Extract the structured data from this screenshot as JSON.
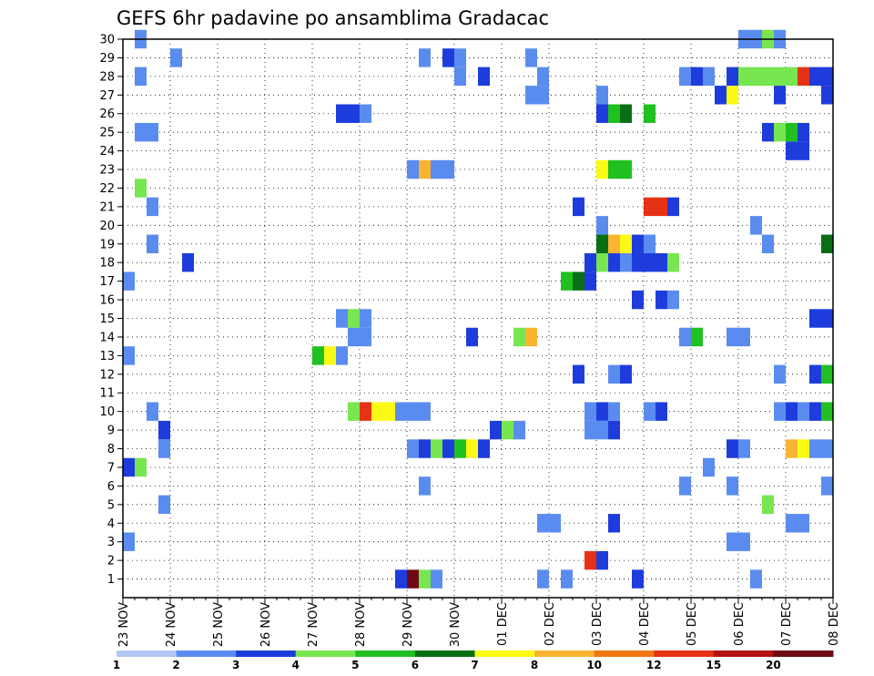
{
  "chart_data": {
    "type": "heatmap",
    "title": "GEFS 6hr padavine po ansamblima Gradacac",
    "xlabel": "",
    "ylabel": "",
    "x_ticks": [
      "23 NOV",
      "24 NOV",
      "25 NOV",
      "26 NOV",
      "27 NOV",
      "28 NOV",
      "29 NOV",
      "30 NOV",
      "01 DEC",
      "02 DEC",
      "03 DEC",
      "04 DEC",
      "05 DEC",
      "06 DEC",
      "07 DEC",
      "08 DEC"
    ],
    "y_ticks": [
      "1",
      "2",
      "3",
      "4",
      "5",
      "6",
      "7",
      "8",
      "9",
      "10",
      "11",
      "12",
      "13",
      "14",
      "15",
      "16",
      "17",
      "18",
      "19",
      "20",
      "21",
      "22",
      "23",
      "24",
      "25",
      "26",
      "27",
      "28",
      "29",
      "30"
    ],
    "xlim": [
      0,
      15
    ],
    "ylim": [
      0,
      30
    ],
    "grid": true,
    "x_unit": "days from 23 NOV (4 steps of 6hr per day)",
    "levels": [
      "1",
      "2",
      "3",
      "4",
      "5",
      "6",
      "7",
      "8",
      "10",
      "12",
      "15",
      "20"
    ],
    "colors": [
      "#b4c8f5",
      "#5a8cf0",
      "#1e3cdc",
      "#78e650",
      "#20c020",
      "#0a6e14",
      "#fafa14",
      "#fab432",
      "#f07814",
      "#e63214",
      "#b41414",
      "#6e0a14"
    ],
    "cells": [
      [
        0.25,
        30,
        1
      ],
      [
        13.0,
        30,
        1
      ],
      [
        13.25,
        30,
        1
      ],
      [
        13.5,
        30,
        3
      ],
      [
        13.75,
        30,
        1
      ],
      [
        1.0,
        29,
        1
      ],
      [
        6.25,
        29,
        1
      ],
      [
        6.75,
        29,
        2
      ],
      [
        7.0,
        29,
        1
      ],
      [
        8.5,
        29,
        1
      ],
      [
        0.25,
        28,
        1
      ],
      [
        7.0,
        28,
        1
      ],
      [
        7.5,
        28,
        2
      ],
      [
        8.75,
        28,
        1
      ],
      [
        11.75,
        28,
        1
      ],
      [
        12.0,
        28,
        2
      ],
      [
        12.25,
        28,
        1
      ],
      [
        12.75,
        28,
        2
      ],
      [
        13.0,
        28,
        3
      ],
      [
        13.25,
        28,
        3
      ],
      [
        13.5,
        28,
        3
      ],
      [
        13.75,
        28,
        3
      ],
      [
        14.0,
        28,
        3
      ],
      [
        14.25,
        28,
        9
      ],
      [
        14.5,
        28,
        2
      ],
      [
        14.75,
        28,
        2
      ],
      [
        15.0,
        28,
        1
      ],
      [
        8.5,
        27,
        1
      ],
      [
        8.75,
        27,
        1
      ],
      [
        10.0,
        27,
        1
      ],
      [
        12.5,
        27,
        2
      ],
      [
        12.75,
        27,
        6
      ],
      [
        13.75,
        27,
        2
      ],
      [
        14.75,
        27,
        2
      ],
      [
        15.0,
        27,
        4
      ],
      [
        4.5,
        26,
        2
      ],
      [
        4.75,
        26,
        2
      ],
      [
        5.0,
        26,
        1
      ],
      [
        10.0,
        26,
        2
      ],
      [
        10.25,
        26,
        4
      ],
      [
        10.5,
        26,
        5
      ],
      [
        11.0,
        26,
        4
      ],
      [
        0.25,
        25,
        1
      ],
      [
        0.5,
        25,
        1
      ],
      [
        13.5,
        25,
        2
      ],
      [
        13.75,
        25,
        3
      ],
      [
        14.0,
        25,
        4
      ],
      [
        14.25,
        25,
        2
      ],
      [
        14.0,
        24,
        2
      ],
      [
        14.25,
        24,
        2
      ],
      [
        6.0,
        23,
        1
      ],
      [
        6.25,
        23,
        7
      ],
      [
        6.5,
        23,
        1
      ],
      [
        6.75,
        23,
        1
      ],
      [
        10.0,
        23,
        6
      ],
      [
        10.25,
        23,
        4
      ],
      [
        10.5,
        23,
        4
      ],
      [
        0.25,
        22,
        3
      ],
      [
        0.5,
        21,
        1
      ],
      [
        9.5,
        21,
        2
      ],
      [
        11.0,
        21,
        9
      ],
      [
        11.25,
        21,
        9
      ],
      [
        11.5,
        21,
        2
      ],
      [
        10.0,
        20,
        1
      ],
      [
        13.25,
        20,
        1
      ],
      [
        0.5,
        19,
        1
      ],
      [
        10.0,
        19,
        5
      ],
      [
        10.25,
        19,
        7
      ],
      [
        10.5,
        19,
        6
      ],
      [
        10.75,
        19,
        2
      ],
      [
        11.0,
        19,
        1
      ],
      [
        13.5,
        19,
        1
      ],
      [
        14.75,
        19,
        5
      ],
      [
        15.0,
        19,
        1
      ],
      [
        1.25,
        18,
        2
      ],
      [
        9.75,
        18,
        2
      ],
      [
        10.0,
        18,
        3
      ],
      [
        10.25,
        18,
        2
      ],
      [
        10.5,
        18,
        1
      ],
      [
        10.75,
        18,
        2
      ],
      [
        11.0,
        18,
        2
      ],
      [
        11.25,
        18,
        2
      ],
      [
        11.5,
        18,
        3
      ],
      [
        0.0,
        17,
        1
      ],
      [
        9.25,
        17,
        4
      ],
      [
        9.5,
        17,
        5
      ],
      [
        9.75,
        17,
        2
      ],
      [
        15.0,
        17,
        1
      ],
      [
        10.75,
        16,
        2
      ],
      [
        11.25,
        16,
        2
      ],
      [
        11.5,
        16,
        1
      ],
      [
        4.5,
        15,
        1
      ],
      [
        4.75,
        15,
        3
      ],
      [
        5.0,
        15,
        1
      ],
      [
        14.5,
        15,
        2
      ],
      [
        14.75,
        15,
        2
      ],
      [
        4.75,
        14,
        1
      ],
      [
        5.0,
        14,
        1
      ],
      [
        7.25,
        14,
        2
      ],
      [
        8.25,
        14,
        3
      ],
      [
        8.5,
        14,
        7
      ],
      [
        11.75,
        14,
        1
      ],
      [
        12.0,
        14,
        4
      ],
      [
        12.75,
        14,
        1
      ],
      [
        13.0,
        14,
        1
      ],
      [
        0.0,
        13,
        1
      ],
      [
        4.0,
        13,
        4
      ],
      [
        4.25,
        13,
        6
      ],
      [
        4.5,
        13,
        1
      ],
      [
        15.0,
        13,
        1
      ],
      [
        9.5,
        12,
        2
      ],
      [
        10.25,
        12,
        1
      ],
      [
        10.5,
        12,
        2
      ],
      [
        13.75,
        12,
        1
      ],
      [
        14.5,
        12,
        2
      ],
      [
        14.75,
        12,
        4
      ],
      [
        15.0,
        12,
        5
      ],
      [
        0.5,
        10,
        1
      ],
      [
        4.75,
        10,
        3
      ],
      [
        5.0,
        10,
        9
      ],
      [
        5.25,
        10,
        6
      ],
      [
        5.5,
        10,
        6
      ],
      [
        5.75,
        10,
        1
      ],
      [
        6.0,
        10,
        1
      ],
      [
        6.25,
        10,
        1
      ],
      [
        9.75,
        10,
        1
      ],
      [
        10.0,
        10,
        2
      ],
      [
        10.25,
        10,
        1
      ],
      [
        11.0,
        10,
        1
      ],
      [
        11.25,
        10,
        2
      ],
      [
        13.75,
        10,
        1
      ],
      [
        14.0,
        10,
        2
      ],
      [
        14.25,
        10,
        1
      ],
      [
        14.5,
        10,
        2
      ],
      [
        14.75,
        10,
        4
      ],
      [
        0.75,
        9,
        2
      ],
      [
        7.75,
        9,
        2
      ],
      [
        8.0,
        9,
        3
      ],
      [
        8.25,
        9,
        1
      ],
      [
        9.75,
        9,
        1
      ],
      [
        10.0,
        9,
        1
      ],
      [
        10.25,
        9,
        2
      ],
      [
        0.75,
        8,
        1
      ],
      [
        6.0,
        8,
        1
      ],
      [
        6.25,
        8,
        2
      ],
      [
        6.5,
        8,
        3
      ],
      [
        6.75,
        8,
        2
      ],
      [
        7.0,
        8,
        4
      ],
      [
        7.25,
        8,
        6
      ],
      [
        7.5,
        8,
        2
      ],
      [
        12.75,
        8,
        2
      ],
      [
        13.0,
        8,
        1
      ],
      [
        14.0,
        8,
        7
      ],
      [
        14.25,
        8,
        6
      ],
      [
        14.5,
        8,
        1
      ],
      [
        14.75,
        8,
        1
      ],
      [
        15.0,
        8,
        4
      ],
      [
        0.0,
        7,
        2
      ],
      [
        0.25,
        7,
        3
      ],
      [
        12.25,
        7,
        1
      ],
      [
        6.25,
        6,
        1
      ],
      [
        11.75,
        6,
        1
      ],
      [
        12.75,
        6,
        1
      ],
      [
        14.75,
        6,
        1
      ],
      [
        15.0,
        6,
        3
      ],
      [
        0.75,
        5,
        1
      ],
      [
        13.5,
        5,
        3
      ],
      [
        8.75,
        4,
        1
      ],
      [
        9.0,
        4,
        1
      ],
      [
        10.25,
        4,
        2
      ],
      [
        14.0,
        4,
        1
      ],
      [
        14.25,
        4,
        1
      ],
      [
        0.0,
        3,
        1
      ],
      [
        12.75,
        3,
        1
      ],
      [
        13.0,
        3,
        1
      ],
      [
        9.75,
        2,
        9
      ],
      [
        10.0,
        2,
        2
      ],
      [
        5.75,
        1,
        2
      ],
      [
        6.0,
        1,
        11
      ],
      [
        6.25,
        1,
        3
      ],
      [
        6.5,
        1,
        1
      ],
      [
        8.75,
        1,
        1
      ],
      [
        9.25,
        1,
        1
      ],
      [
        10.75,
        1,
        2
      ],
      [
        13.25,
        1,
        1
      ]
    ]
  }
}
